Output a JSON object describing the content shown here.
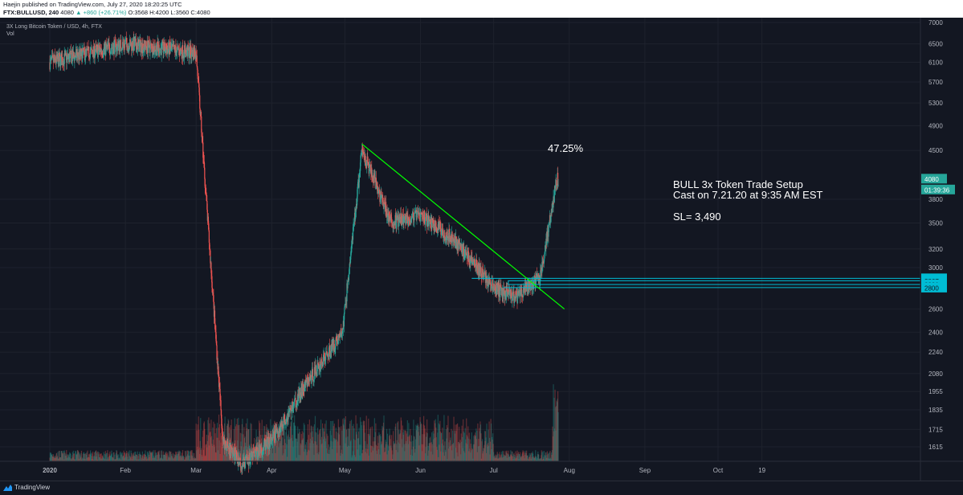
{
  "header": {
    "publisher": "Haejin published on TradingView.com, July 27, 2020 18:20:25 UTC",
    "symbol": "FTX:BULLUSD, 240",
    "last": "4080",
    "change": "▲ +860 (+26.71%)",
    "ohlc": "O:3568 H:4200 L:3560 C:4080"
  },
  "chart_data": {
    "type": "candlestick",
    "title": "3X Long Bitcoin Token / USD, 4h, FTX",
    "volume_label": "Vol",
    "y_scale": "log",
    "ylim": [
      1520,
      7100
    ],
    "y_ticks": [
      7000,
      6500,
      6100,
      5700,
      5300,
      4900,
      4500,
      3800,
      3500,
      3200,
      3000,
      2600,
      2400,
      2240,
      2080,
      1955,
      1835,
      1715,
      1615
    ],
    "x_ticks": [
      "2020",
      "Feb",
      "Mar",
      "Apr",
      "May",
      "Jun",
      "Jul",
      "Aug",
      "Sep",
      "Oct",
      "19"
    ],
    "approx_closes": {
      "dates": [
        "2020-01-01",
        "2020-02-01",
        "2020-03-01",
        "2020-03-12",
        "2020-03-20",
        "2020-04-01",
        "2020-04-15",
        "2020-04-30",
        "2020-05-08",
        "2020-05-20",
        "2020-06-01",
        "2020-06-15",
        "2020-07-01",
        "2020-07-10",
        "2020-07-20",
        "2020-07-27"
      ],
      "values": [
        6100,
        6500,
        6300,
        1650,
        1520,
        1650,
        2000,
        2400,
        4500,
        3500,
        3600,
        3300,
        2800,
        2700,
        2900,
        4080
      ]
    },
    "trendline": {
      "from": [
        "2020-05-08",
        4600
      ],
      "to": [
        "2020-07-30",
        2600
      ]
    },
    "price_labels": [
      {
        "text": "4080",
        "value": 4080,
        "color": "#26a69a"
      },
      {
        "text": "01:39:36",
        "value": 3930,
        "color": "#26a69a"
      },
      {
        "text": "2891",
        "value": 2891,
        "color": "#00bcd4"
      },
      {
        "text": "2867",
        "value": 2867,
        "color": "#00bcd4"
      },
      {
        "text": "2830",
        "value": 2830,
        "color": "#00bcd4"
      },
      {
        "text": "2800",
        "value": 2800,
        "color": "#00bcd4"
      }
    ],
    "annotations": {
      "percent": "47.25%",
      "setup_line1": "BULL 3x Token Trade Setup",
      "setup_line2": "Cast on 7.21.20 at 9:35 AM EST",
      "stop_loss": "SL= 3,490"
    },
    "colors": {
      "background": "#131722",
      "up": "#26a69a",
      "down": "#ef5350",
      "trendline": "#00ff00",
      "levels": "#00bcd4"
    }
  },
  "footer": {
    "brand": "TradingView"
  }
}
